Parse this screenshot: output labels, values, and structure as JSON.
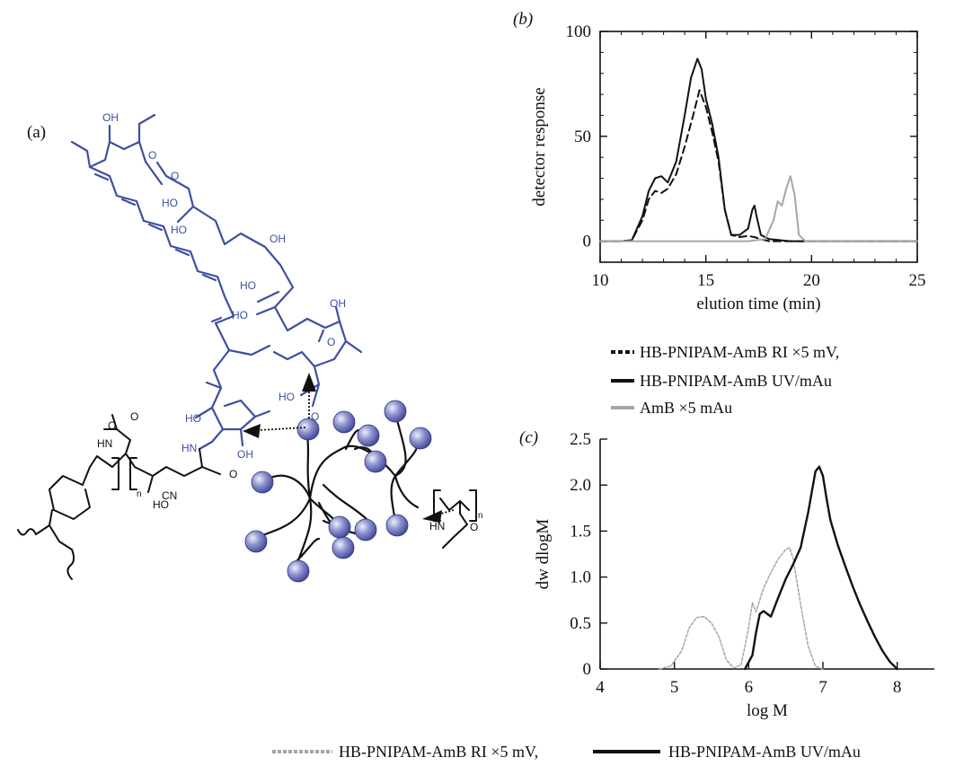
{
  "panels": {
    "a": {
      "label": "(a)"
    },
    "b": {
      "label": "(b)"
    },
    "c": {
      "label": "(c)"
    }
  },
  "molecule": {
    "substituents": [
      "OH",
      "O",
      "O",
      "HO",
      "HO",
      "OH",
      "HO",
      "HO",
      "O",
      "OH",
      "HO",
      "O",
      "HO",
      "OH",
      "HN",
      "O",
      "HO",
      "O",
      "CN",
      "HN",
      "O",
      "n",
      "HN",
      "O",
      "n"
    ]
  },
  "colors": {
    "amb": "#3d4fa1",
    "black": "#111111",
    "grey": "#a6a6a6",
    "sphere_light": "#dadcf4",
    "sphere_dark": "#4f57a8"
  },
  "chart_data": [
    {
      "type": "line",
      "panel": "b",
      "xlabel": "elution time (min)",
      "ylabel": "detector response",
      "xlim": [
        10,
        25
      ],
      "ylim": [
        -10,
        100
      ],
      "xticks": [
        10,
        15,
        20,
        25
      ],
      "yticks": [
        0,
        50,
        100
      ],
      "grid": false,
      "legend_position": "below",
      "series": [
        {
          "name": "HB-PNIPAM-AmB RI ×5 mV,",
          "style": "dashed",
          "color": "#111111",
          "x": [
            10,
            11,
            11.5,
            12,
            12.3,
            12.6,
            12.9,
            13.2,
            13.6,
            14.0,
            14.4,
            14.7,
            15.0,
            15.3,
            15.6,
            15.9,
            16.2,
            16.6,
            17.0,
            17.3,
            17.6,
            18.0,
            19,
            20,
            25
          ],
          "y": [
            0,
            0,
            0.5,
            10,
            20,
            24,
            23,
            25,
            32,
            45,
            60,
            72,
            64,
            52,
            38,
            15,
            3,
            2,
            2.5,
            2,
            1,
            0,
            0,
            0,
            0
          ]
        },
        {
          "name": "HB-PNIPAM-AmB UV/mAu",
          "style": "solid",
          "color": "#111111",
          "x": [
            10,
            11,
            11.5,
            12,
            12.3,
            12.6,
            12.9,
            13.2,
            13.6,
            14.0,
            14.3,
            14.6,
            14.8,
            15.0,
            15.3,
            15.6,
            15.9,
            16.2,
            16.6,
            17.0,
            17.2,
            17.3,
            17.4,
            17.6,
            18.0,
            19,
            20,
            25
          ],
          "y": [
            0,
            0,
            0.5,
            12,
            24,
            30,
            31,
            28,
            38,
            60,
            78,
            87,
            82,
            68,
            56,
            40,
            15,
            3,
            3,
            6,
            15,
            17,
            12,
            3,
            1,
            0,
            0,
            0
          ],
          "linewidth": 2
        },
        {
          "name": "AmB ×5 mAu",
          "style": "solid",
          "color": "#a6a6a6",
          "x": [
            10,
            17,
            17.8,
            18.2,
            18.4,
            18.6,
            18.8,
            19.0,
            19.2,
            19.4,
            19.7,
            20.0,
            25
          ],
          "y": [
            0,
            0,
            1,
            10,
            19,
            17,
            25,
            31,
            22,
            3,
            0,
            0,
            0
          ],
          "linewidth": 2
        }
      ]
    },
    {
      "type": "line",
      "panel": "c",
      "xlabel": "log M",
      "ylabel": "dw dlogM",
      "xlim": [
        4,
        8.5
      ],
      "ylim": [
        0,
        2.5
      ],
      "xticks": [
        4,
        5,
        6,
        7,
        8
      ],
      "yticks": [
        0,
        0.5,
        1.0,
        1.5,
        2.0,
        2.5
      ],
      "ytick_labels": [
        "0",
        "0.5",
        "1.0",
        "1.5",
        "2.0",
        "2.5"
      ],
      "grid": false,
      "legend_position": "bottom",
      "series": [
        {
          "name": "HB-PNIPAM-AmB RI ×5 mV,",
          "style": "dotted",
          "color": "#a6a6a6",
          "x": [
            4.8,
            4.95,
            5.1,
            5.2,
            5.3,
            5.4,
            5.5,
            5.6,
            5.7,
            5.8,
            5.9,
            6.0,
            6.05,
            6.1,
            6.2,
            6.3,
            6.4,
            6.5,
            6.55,
            6.6,
            6.7,
            6.8,
            6.9,
            7.0
          ],
          "y": [
            0,
            0.03,
            0.2,
            0.45,
            0.56,
            0.57,
            0.5,
            0.35,
            0.1,
            0.01,
            0.05,
            0.45,
            0.72,
            0.62,
            0.88,
            1.05,
            1.2,
            1.3,
            1.32,
            1.2,
            0.7,
            0.25,
            0.03,
            0
          ],
          "linewidth": 1.5
        },
        {
          "name": "HB-PNIPAM-AmB UV/mAu",
          "style": "solid",
          "color": "#111111",
          "x": [
            5.95,
            6.05,
            6.1,
            6.15,
            6.2,
            6.3,
            6.4,
            6.5,
            6.6,
            6.7,
            6.8,
            6.9,
            6.95,
            7.0,
            7.05,
            7.1,
            7.2,
            7.3,
            7.4,
            7.5,
            7.6,
            7.7,
            7.8,
            7.9,
            8.0
          ],
          "y": [
            0,
            0.15,
            0.4,
            0.6,
            0.63,
            0.57,
            0.78,
            0.98,
            1.14,
            1.32,
            1.7,
            2.15,
            2.2,
            2.1,
            1.85,
            1.62,
            1.35,
            1.12,
            0.9,
            0.7,
            0.52,
            0.35,
            0.2,
            0.08,
            0
          ],
          "linewidth": 2.4
        }
      ]
    }
  ]
}
